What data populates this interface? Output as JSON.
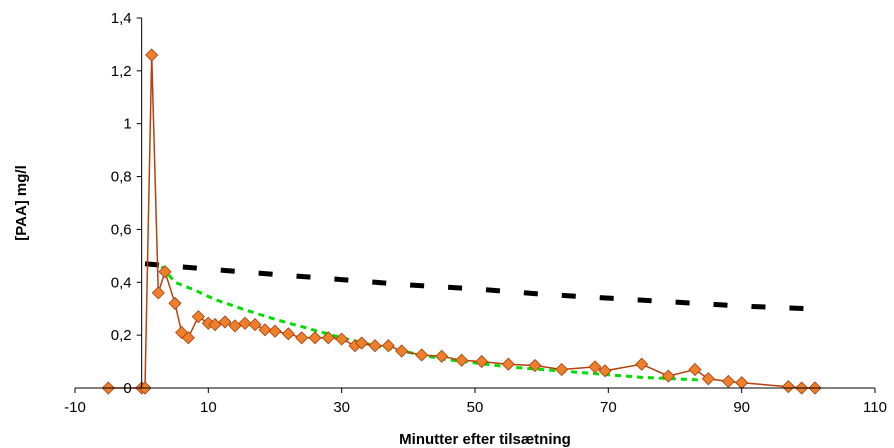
{
  "chart_data": {
    "type": "line",
    "title": "",
    "xlabel": "Minutter efter tilsætning",
    "ylabel": "[PAA] mg/l",
    "xlim": [
      -10,
      110
    ],
    "ylim": [
      0,
      1.4
    ],
    "xticks": [
      -10,
      10,
      30,
      50,
      70,
      90,
      110
    ],
    "xtick_labels": [
      "-10",
      "10",
      "30",
      "50",
      "70",
      "90",
      "110"
    ],
    "yticks": [
      0,
      0.2,
      0.4,
      0.6,
      0.8,
      1.0,
      1.2,
      1.4
    ],
    "ytick_labels": [
      "0",
      "0,2",
      "0,4",
      "0,6",
      "0,8",
      "1",
      "1,2",
      "1,4"
    ],
    "grid": false,
    "legend": "none",
    "series": [
      {
        "style": "line-with-markers",
        "color": "#b5410f",
        "marker_color": "#f07f2b",
        "marker": "diamond",
        "points": [
          [
            -5,
            0
          ],
          [
            0,
            0
          ],
          [
            0.5,
            0
          ],
          [
            1.5,
            1.26
          ],
          [
            2.5,
            0.36
          ],
          [
            3.5,
            0.44
          ],
          [
            5,
            0.32
          ],
          [
            6,
            0.21
          ],
          [
            7,
            0.19
          ],
          [
            8.5,
            0.27
          ],
          [
            10,
            0.245
          ],
          [
            11,
            0.24
          ],
          [
            12.5,
            0.25
          ],
          [
            14,
            0.235
          ],
          [
            15.5,
            0.245
          ],
          [
            17,
            0.24
          ],
          [
            18.5,
            0.22
          ],
          [
            20,
            0.215
          ],
          [
            22,
            0.205
          ],
          [
            24,
            0.19
          ],
          [
            26,
            0.19
          ],
          [
            28,
            0.19
          ],
          [
            30,
            0.185
          ],
          [
            32,
            0.16
          ],
          [
            33,
            0.17
          ],
          [
            35,
            0.16
          ],
          [
            37,
            0.16
          ],
          [
            39,
            0.14
          ],
          [
            42,
            0.125
          ],
          [
            45,
            0.12
          ],
          [
            48,
            0.105
          ],
          [
            51,
            0.1
          ],
          [
            55,
            0.09
          ],
          [
            59,
            0.085
          ],
          [
            63,
            0.07
          ],
          [
            68,
            0.08
          ],
          [
            69.5,
            0.065
          ],
          [
            75,
            0.09
          ],
          [
            79,
            0.045
          ],
          [
            83,
            0.07
          ],
          [
            85,
            0.035
          ],
          [
            88,
            0.025
          ],
          [
            90,
            0.02
          ],
          [
            97,
            0.005
          ],
          [
            99,
            0
          ],
          [
            101,
            0
          ]
        ]
      },
      {
        "style": "dashed",
        "color": "#00dd00",
        "points": [
          [
            3,
            0.46
          ],
          [
            5,
            0.4
          ],
          [
            8,
            0.37
          ],
          [
            11,
            0.335
          ],
          [
            15,
            0.3
          ],
          [
            20,
            0.26
          ],
          [
            25,
            0.225
          ],
          [
            30,
            0.19
          ],
          [
            35,
            0.16
          ],
          [
            40,
            0.135
          ],
          [
            45,
            0.11
          ],
          [
            50,
            0.095
          ],
          [
            55,
            0.08
          ],
          [
            60,
            0.07
          ],
          [
            65,
            0.06
          ],
          [
            70,
            0.05
          ],
          [
            75,
            0.04
          ],
          [
            80,
            0.035
          ],
          [
            84,
            0.03
          ]
        ]
      },
      {
        "style": "heavy-dashed",
        "color": "#000000",
        "points": [
          [
            0.5,
            0.47
          ],
          [
            10,
            0.45
          ],
          [
            20,
            0.43
          ],
          [
            30,
            0.41
          ],
          [
            40,
            0.39
          ],
          [
            50,
            0.375
          ],
          [
            60,
            0.355
          ],
          [
            70,
            0.34
          ],
          [
            80,
            0.325
          ],
          [
            90,
            0.31
          ],
          [
            100,
            0.3
          ]
        ]
      }
    ]
  }
}
